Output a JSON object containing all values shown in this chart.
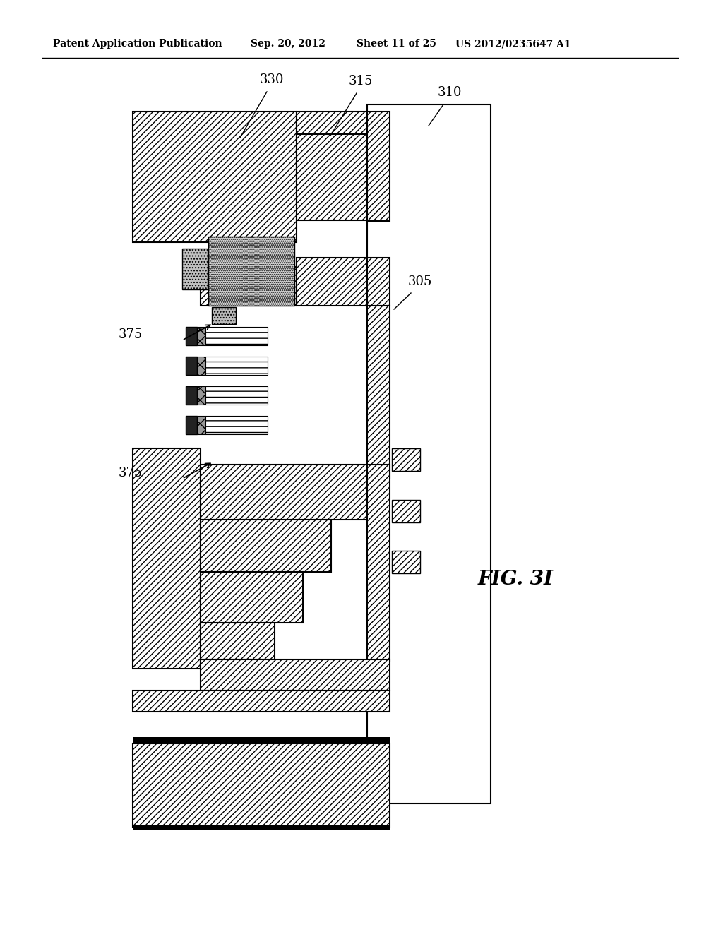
{
  "header_left": "Patent Application Publication",
  "header_mid1": "Sep. 20, 2012",
  "header_mid2": "Sheet 11 of 25",
  "header_right": "US 2012/0235647 A1",
  "fig_label": "FIG. 3I",
  "label_310": "310",
  "label_315": "315",
  "label_330": "330",
  "label_305": "305",
  "label_375": "375",
  "bg": "#ffffff",
  "lc": "#000000"
}
